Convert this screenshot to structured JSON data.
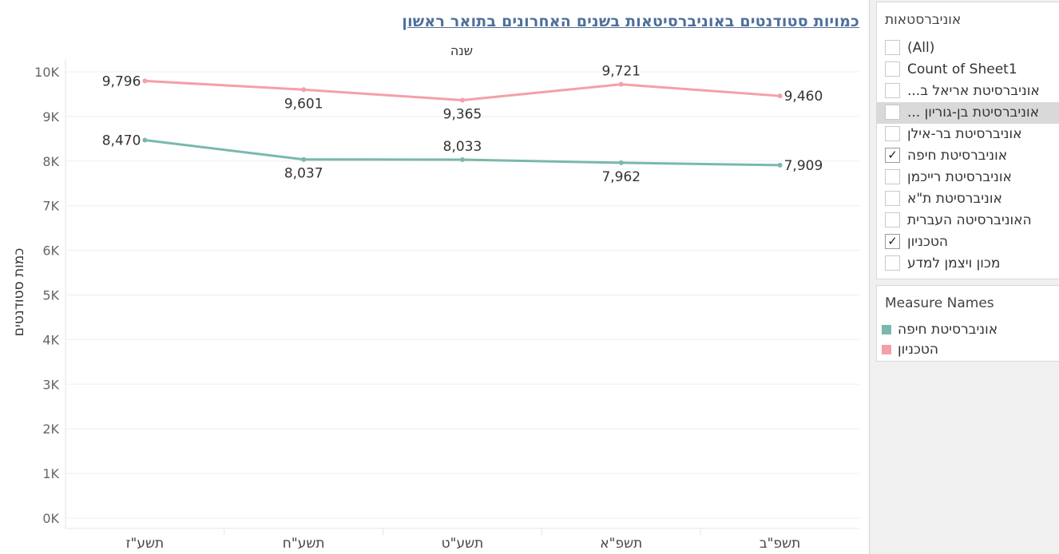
{
  "chart_data": {
    "type": "line",
    "title": "כמויות סטודנטים באוניברסיטאות בשנים האחרונים בתואר ראשון",
    "xlabel": "שנה",
    "ylabel": "כמות סטודנטים",
    "categories": [
      "תשע\"ז",
      "תשע\"ח",
      "תשע\"ט",
      "תשפ\"א",
      "תשפ\"ב"
    ],
    "ylim": [
      0,
      10000
    ],
    "yticks": [
      0,
      1000,
      2000,
      3000,
      4000,
      5000,
      6000,
      7000,
      8000,
      9000,
      10000
    ],
    "ytick_labels": [
      "0K",
      "1K",
      "2K",
      "3K",
      "4K",
      "5K",
      "6K",
      "7K",
      "8K",
      "9K",
      "10K"
    ],
    "grid": true,
    "legend_position": "right",
    "series": [
      {
        "name": "הטכניון",
        "color": "#f4a0a8",
        "values": [
          9796,
          9601,
          9365,
          9721,
          9460
        ],
        "labels": [
          "9,796",
          "9,601",
          "9,365",
          "9,721",
          "9,460"
        ],
        "label_pos": [
          "left",
          "below",
          "below",
          "above",
          "right"
        ]
      },
      {
        "name": "אוניברסיטת חיפה",
        "color": "#7ab8ad",
        "values": [
          8470,
          8037,
          8033,
          7962,
          7909
        ],
        "labels": [
          "8,470",
          "8,037",
          "8,033",
          "7,962",
          "7,909"
        ],
        "label_pos": [
          "left",
          "below",
          "above",
          "below",
          "right"
        ]
      }
    ]
  },
  "filter": {
    "title": "אוניברסטאות",
    "items": [
      {
        "label": "(All)",
        "checked": false,
        "ltr": true
      },
      {
        "label": "Count of Sheet1",
        "checked": false,
        "ltr": true
      },
      {
        "label": "אוניברסיטת אריאל ב...",
        "checked": false,
        "ltr": false
      },
      {
        "label": "אוניברסיטת בן-גוריון ...",
        "checked": false,
        "ltr": false,
        "hover": true
      },
      {
        "label": "אוניברסיטת בר-אילן",
        "checked": false,
        "ltr": false
      },
      {
        "label": "אוניברסיטת חיפה",
        "checked": true,
        "ltr": false
      },
      {
        "label": "אוניברסיטת רייכמן",
        "checked": false,
        "ltr": false
      },
      {
        "label": "אוניברסיטת ת\"א",
        "checked": false,
        "ltr": false
      },
      {
        "label": "האוניברסיטה העברית",
        "checked": false,
        "ltr": false
      },
      {
        "label": "הטכניון",
        "checked": true,
        "ltr": false
      },
      {
        "label": "מכון ויצמן למדע",
        "checked": false,
        "ltr": false
      }
    ],
    "check_glyph": "✓"
  },
  "legend": {
    "title": "Measure Names",
    "items": [
      {
        "label": "אוניברסיטת חיפה",
        "color": "#7ab8ad"
      },
      {
        "label": "הטכניון",
        "color": "#f4a0a8"
      }
    ]
  }
}
